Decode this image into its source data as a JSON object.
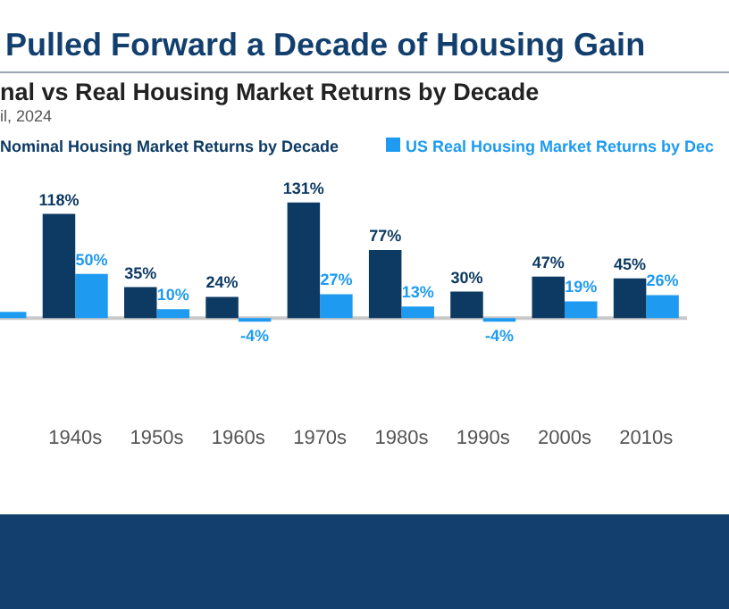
{
  "chart_data": {
    "type": "bar",
    "title": "Pulled Forward a Decade of Housing Gain",
    "subtitle": "nal vs Real Housing Market Returns by Decade",
    "annotations": [
      "il, 2024"
    ],
    "categories": [
      null,
      "1940s",
      "1950s",
      "1960s",
      "1970s",
      "1980s",
      "1990s",
      "2000s",
      "2010s"
    ],
    "series": [
      {
        "name": "Nominal Housing Market Returns by Decade",
        "color": "#0d3a63",
        "values": [
          null,
          118,
          35,
          24,
          131,
          77,
          30,
          47,
          45
        ],
        "value_labels": [
          null,
          "118%",
          "35%",
          "24%",
          "131%",
          "77%",
          "30%",
          "47%",
          "45%"
        ]
      },
      {
        "name": "US Real Housing Market Returns by Dec",
        "color": "#1e9bf0",
        "values": [
          7,
          50,
          10,
          -4,
          27,
          13,
          -4,
          19,
          26
        ],
        "value_labels": [
          null,
          "50%",
          "10%",
          "-4%",
          "27%",
          "13%",
          "-4%",
          "19%",
          "26%"
        ]
      }
    ],
    "legend": "top",
    "grid": false
  }
}
